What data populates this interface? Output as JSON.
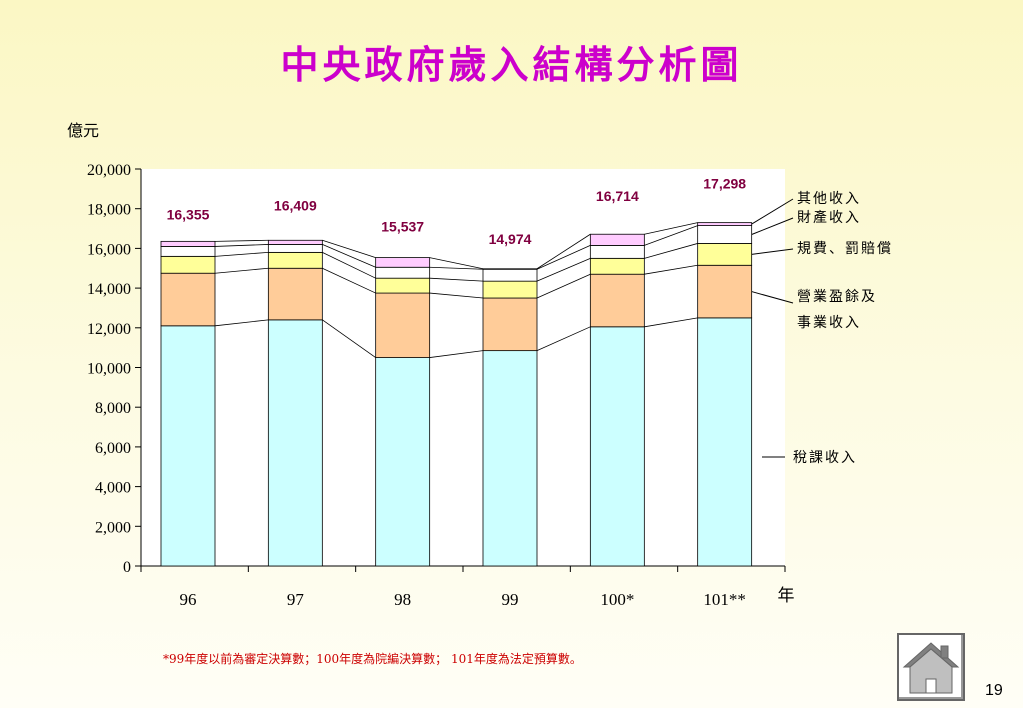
{
  "title": "中央政府歲入結構分析圖",
  "footnote": "*99年度以前為審定決算數；100年度為院編決算數； 101年度為法定預算數。",
  "page_number": "19",
  "home_icon": "house-icon",
  "colors": {
    "title": "#cc00cc",
    "tax": "#ccffff",
    "enterprise": "#ffcc99",
    "fees": "#ffff99",
    "property": "#ffffff",
    "other": "#ffccff",
    "total_label": "#800040",
    "footnote": "#cc0000"
  },
  "chart_data": {
    "type": "bar",
    "stacked": true,
    "ylabel": "億元",
    "xlabel": "年",
    "categories": [
      "96",
      "97",
      "98",
      "99",
      "100*",
      "101**"
    ],
    "ylim": [
      0,
      20000
    ],
    "yticks": [
      "0",
      "2,000",
      "4,000",
      "6,000",
      "8,000",
      "10,000",
      "12,000",
      "14,000",
      "16,000",
      "18,000",
      "20,000"
    ],
    "series": [
      {
        "name": "稅課收入",
        "color": "#ccffff",
        "values": [
          12100,
          12400,
          10500,
          10850,
          12050,
          12500
        ]
      },
      {
        "name": "營業盈餘及事業收入",
        "color": "#ffcc99",
        "values": [
          2650,
          2600,
          3250,
          2650,
          2650,
          2650
        ]
      },
      {
        "name": "規費、罰賠償",
        "color": "#ffff99",
        "values": [
          850,
          800,
          750,
          850,
          800,
          1100
        ]
      },
      {
        "name": "財產收入",
        "color": "#ffffff",
        "values": [
          500,
          400,
          550,
          600,
          650,
          900
        ]
      },
      {
        "name": "其他收入",
        "color": "#ffccff",
        "values": [
          255,
          209,
          487,
          24,
          564,
          148
        ]
      }
    ],
    "totals": [
      16355,
      16409,
      15537,
      14974,
      16714,
      17298
    ],
    "total_labels": [
      "16,355",
      "16,409",
      "15,537",
      "14,974",
      "16,714",
      "17,298"
    ],
    "legend_labels": [
      "其他收入",
      "財產收入",
      "規費、罰賠償",
      "營業盈餘及",
      "事業收入",
      "稅課收入"
    ],
    "grid": false,
    "legend": "right"
  }
}
